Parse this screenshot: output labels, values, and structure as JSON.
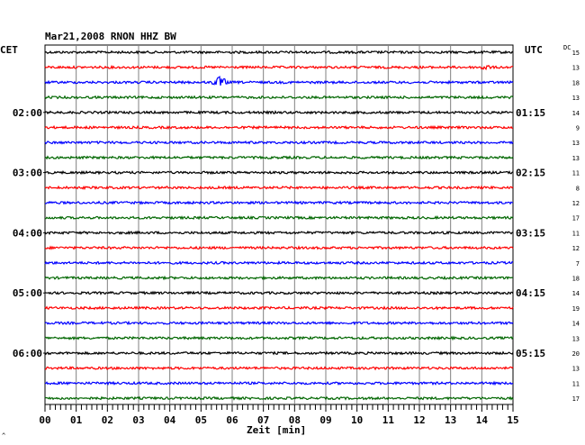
{
  "header": {
    "title": "Mar21,2008   RNON HHZ BW",
    "left_axis_label": "CET",
    "right_axis_label": "UTC",
    "dc_label": "DC",
    "corner_mark": "^"
  },
  "chart_data": {
    "type": "line",
    "title": "Mar21,2008   RNON HHZ BW",
    "xlabel": "Zeit [min]",
    "ylabel": "",
    "x_range": [
      0,
      15
    ],
    "x_ticks": [
      "00",
      "01",
      "02",
      "03",
      "04",
      "05",
      "06",
      "07",
      "08",
      "09",
      "10",
      "11",
      "12",
      "13",
      "14",
      "15"
    ],
    "grid": true,
    "trace_count": 24,
    "trace_colors": [
      "#000000",
      "#ff0000",
      "#0000ff",
      "#006600"
    ],
    "left_time_labels": [
      {
        "trace": 4,
        "label": "02:00"
      },
      {
        "trace": 8,
        "label": "03:00"
      },
      {
        "trace": 12,
        "label": "04:00"
      },
      {
        "trace": 16,
        "label": "05:00"
      },
      {
        "trace": 20,
        "label": "06:00"
      }
    ],
    "right_time_labels": [
      {
        "trace": 4,
        "label": "01:15"
      },
      {
        "trace": 8,
        "label": "02:15"
      },
      {
        "trace": 12,
        "label": "03:15"
      },
      {
        "trace": 16,
        "label": "04:15"
      },
      {
        "trace": 20,
        "label": "05:15"
      }
    ],
    "dc_values": [
      15,
      13,
      18,
      13,
      14,
      9,
      13,
      13,
      11,
      8,
      12,
      17,
      11,
      12,
      7,
      18,
      14,
      19,
      14,
      13,
      20,
      13,
      11,
      17
    ],
    "events": [
      {
        "trace": 1,
        "x_start": 13.9,
        "x_end": 14.3,
        "amplitude": "small"
      },
      {
        "trace": 2,
        "x_start": 5.3,
        "x_end": 5.9,
        "amplitude": "medium"
      }
    ]
  }
}
